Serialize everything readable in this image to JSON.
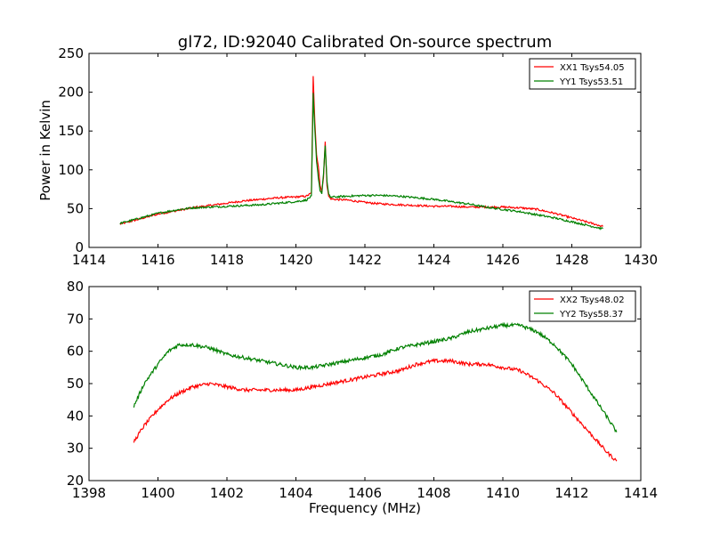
{
  "figure": {
    "title": "gl72, ID:92040 Calibrated On-source spectrum"
  },
  "chart_data": [
    {
      "type": "line",
      "title": "gl72, ID:92040 Calibrated On-source spectrum",
      "xlabel": "",
      "ylabel": "Power in Kelvin",
      "xlim": [
        1414,
        1430
      ],
      "ylim": [
        0,
        250
      ],
      "xticks": [
        "1414",
        "1416",
        "1418",
        "1420",
        "1422",
        "1424",
        "1426",
        "1428",
        "1430"
      ],
      "yticks": [
        "0",
        "50",
        "100",
        "150",
        "200",
        "250"
      ],
      "grid": false,
      "legend_position": "top-right",
      "series": [
        {
          "name": "XX1 Tsys54.05",
          "color": "#ff0000",
          "x": [
            1414.9,
            1415.5,
            1416.0,
            1416.5,
            1417.0,
            1417.5,
            1418.0,
            1418.5,
            1419.0,
            1419.5,
            1420.0,
            1420.3,
            1420.45,
            1420.5,
            1420.55,
            1420.6,
            1420.65,
            1420.7,
            1420.75,
            1420.8,
            1420.85,
            1420.9,
            1420.95,
            1421.0,
            1421.1,
            1421.5,
            1422.0,
            1422.5,
            1423.0,
            1423.5,
            1424.0,
            1424.5,
            1425.0,
            1425.5,
            1426.0,
            1426.5,
            1427.0,
            1427.5,
            1428.0,
            1428.5,
            1428.9
          ],
          "y": [
            30,
            37,
            43,
            47,
            51,
            54,
            57,
            60,
            62,
            64,
            65,
            66,
            70,
            220,
            160,
            120,
            105,
            80,
            72,
            90,
            137,
            80,
            66,
            63,
            62,
            61,
            58,
            56,
            55,
            54,
            53,
            53,
            52,
            52,
            52,
            51,
            49,
            44,
            38,
            32,
            27
          ]
        },
        {
          "name": "YY1 Tsys53.51",
          "color": "#008000",
          "x": [
            1414.9,
            1415.5,
            1416.0,
            1416.5,
            1417.0,
            1417.5,
            1418.0,
            1418.5,
            1419.0,
            1419.5,
            1420.0,
            1420.3,
            1420.45,
            1420.5,
            1420.55,
            1420.6,
            1420.65,
            1420.7,
            1420.75,
            1420.8,
            1420.85,
            1420.9,
            1420.95,
            1421.0,
            1421.1,
            1421.5,
            1422.0,
            1422.5,
            1423.0,
            1423.5,
            1424.0,
            1424.5,
            1425.0,
            1425.5,
            1426.0,
            1426.5,
            1427.0,
            1427.5,
            1428.0,
            1428.5,
            1428.9
          ],
          "y": [
            31,
            38,
            44,
            48,
            51,
            52,
            53,
            54,
            55,
            57,
            59,
            61,
            66,
            198,
            150,
            110,
            90,
            73,
            70,
            95,
            132,
            85,
            68,
            65,
            65,
            66,
            67,
            67,
            66,
            64,
            62,
            59,
            56,
            52,
            49,
            46,
            42,
            38,
            33,
            28,
            24
          ]
        }
      ]
    },
    {
      "type": "line",
      "title": "",
      "xlabel": "Frequency (MHz)",
      "ylabel": "",
      "xlim": [
        1398,
        1414
      ],
      "ylim": [
        20,
        80
      ],
      "xticks": [
        "1398",
        "1400",
        "1402",
        "1404",
        "1406",
        "1408",
        "1410",
        "1412",
        "1414"
      ],
      "yticks": [
        "20",
        "30",
        "40",
        "50",
        "60",
        "70",
        "80"
      ],
      "grid": false,
      "legend_position": "top-right",
      "series": [
        {
          "name": "XX2 Tsys48.02",
          "color": "#ff0000",
          "x": [
            1399.3,
            1399.6,
            1400.0,
            1400.3,
            1400.6,
            1401.0,
            1401.5,
            1402.0,
            1402.5,
            1403.0,
            1403.5,
            1404.0,
            1404.5,
            1405.0,
            1405.5,
            1406.0,
            1406.5,
            1407.0,
            1407.5,
            1408.0,
            1408.5,
            1409.0,
            1409.5,
            1410.0,
            1410.5,
            1411.0,
            1411.5,
            1412.0,
            1412.5,
            1413.0,
            1413.3
          ],
          "y": [
            32,
            37,
            42,
            45,
            47,
            49,
            50,
            49,
            48,
            48,
            48,
            48,
            49,
            50,
            51,
            52,
            53,
            54,
            56,
            57,
            57,
            56,
            56,
            55,
            54,
            51,
            47,
            41,
            35,
            29,
            26
          ]
        },
        {
          "name": "YY2 Tsys58.37",
          "color": "#008000",
          "x": [
            1399.3,
            1399.6,
            1400.0,
            1400.3,
            1400.6,
            1401.0,
            1401.5,
            1402.0,
            1402.5,
            1403.0,
            1403.5,
            1404.0,
            1404.5,
            1405.0,
            1405.5,
            1406.0,
            1406.5,
            1407.0,
            1407.5,
            1408.0,
            1408.5,
            1409.0,
            1409.5,
            1410.0,
            1410.5,
            1411.0,
            1411.5,
            1412.0,
            1412.5,
            1413.0,
            1413.3
          ],
          "y": [
            43,
            50,
            56,
            60,
            62,
            62,
            61,
            59,
            58,
            57,
            56,
            55,
            55,
            56,
            57,
            58,
            59,
            61,
            62,
            63,
            64,
            66,
            67,
            68,
            68,
            66,
            62,
            56,
            48,
            40,
            35
          ]
        }
      ]
    }
  ]
}
